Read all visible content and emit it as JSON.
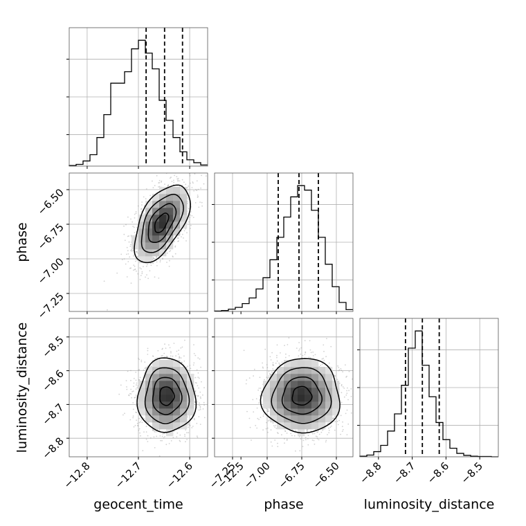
{
  "chart_data": {
    "type": "corner",
    "parameters": [
      "geocent_time",
      "phase",
      "luminosity_distance"
    ],
    "axes": {
      "geocent_time": {
        "label": "geocent_time",
        "ticks": [
          "−12.8",
          "−12.7",
          "−12.6",
          "−12.5"
        ],
        "tick_values": [
          -12.8,
          -12.7,
          -12.6,
          -12.5
        ],
        "range": [
          -12.835,
          -12.565
        ]
      },
      "phase": {
        "label": "phase",
        "ticks": [
          "−7.25",
          "−7.00",
          "−6.75",
          "−6.50"
        ],
        "tick_values": [
          -7.25,
          -7.0,
          -6.75,
          -6.5
        ],
        "range": [
          -7.38,
          -6.38
        ]
      },
      "luminosity_distance": {
        "label": "luminosity_distance",
        "ticks": [
          "−8.8",
          "−8.7",
          "−8.6",
          "−8.5"
        ],
        "tick_values": [
          -8.8,
          -8.7,
          -8.6,
          -8.5
        ],
        "range": [
          -8.855,
          -8.445
        ]
      }
    },
    "histograms": [
      {
        "parameter": "geocent_time",
        "x_range": [
          -12.835,
          -12.565
        ],
        "counts": [
          2,
          6,
          18,
          40,
          100,
          180,
          290,
          290,
          330,
          410,
          440,
          395,
          340,
          230,
          160,
          100,
          50,
          22,
          12,
          4
        ],
        "quantiles": [
          -12.685,
          -12.649,
          -12.614
        ]
      },
      {
        "parameter": "phase",
        "x_range": [
          -7.38,
          -6.38
        ],
        "counts": [
          2,
          4,
          10,
          18,
          35,
          60,
          100,
          150,
          230,
          330,
          420,
          510,
          560,
          540,
          450,
          330,
          210,
          110,
          40,
          8
        ],
        "quantiles": [
          -6.92,
          -6.77,
          -6.63
        ]
      },
      {
        "parameter": "luminosity_distance",
        "x_range": [
          -8.855,
          -8.445
        ],
        "counts": [
          2,
          6,
          18,
          40,
          90,
          150,
          250,
          380,
          440,
          320,
          210,
          120,
          60,
          30,
          12,
          5,
          2,
          1,
          1,
          0
        ],
        "quantiles": [
          -8.72,
          -8.67,
          -8.62
        ]
      }
    ],
    "joint_2d": [
      {
        "x": "geocent_time",
        "y": "phase",
        "peak": [
          -12.655,
          -6.74
        ],
        "sigma": [
          0.027,
          0.14
        ],
        "correlation": 0.55
      },
      {
        "x": "geocent_time",
        "y": "luminosity_distance",
        "peak": [
          -12.645,
          -8.675
        ],
        "sigma": [
          0.028,
          0.055
        ],
        "correlation": 0.0
      },
      {
        "x": "phase",
        "y": "luminosity_distance",
        "peak": [
          -6.75,
          -8.675
        ],
        "sigma": [
          0.14,
          0.055
        ],
        "correlation": 0.0
      }
    ],
    "contour_levels": [
      0.118,
      0.393,
      0.675,
      0.864
    ],
    "grid": true,
    "legend": "none"
  }
}
